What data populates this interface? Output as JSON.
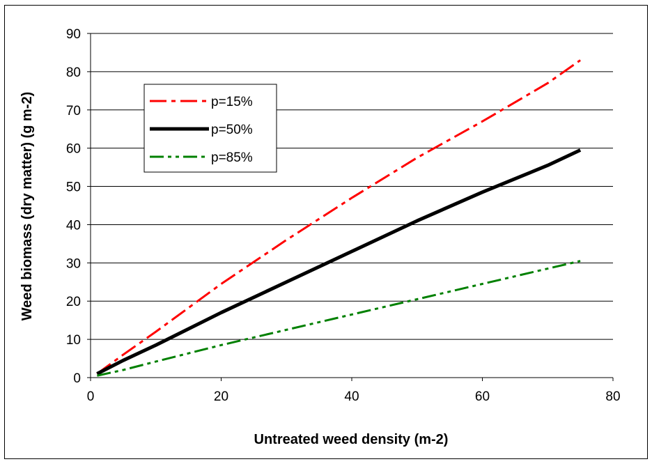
{
  "chart_data": {
    "type": "line",
    "title": "",
    "xlabel": "Untreated weed density (m-2)",
    "ylabel": "Weed biomass (dry matter) (g m-2)",
    "xlim": [
      0,
      80
    ],
    "ylim": [
      0,
      90
    ],
    "xticks": [
      0,
      20,
      40,
      60,
      80
    ],
    "yticks": [
      0,
      10,
      20,
      30,
      40,
      50,
      60,
      70,
      80,
      90
    ],
    "grid": "horizontal",
    "legend_position": "top-left",
    "series": [
      {
        "name": "p=15%",
        "color": "#ff0000",
        "style": "dash-dot",
        "x": [
          1,
          5,
          10,
          20,
          30,
          40,
          50,
          60,
          70,
          75
        ],
        "y": [
          1,
          6,
          12,
          24.5,
          36,
          47,
          57.5,
          67,
          77,
          83
        ]
      },
      {
        "name": "p=50%",
        "color": "#000000",
        "style": "solid",
        "x": [
          1,
          5,
          10,
          20,
          30,
          40,
          50,
          60,
          70,
          75
        ],
        "y": [
          1,
          4.5,
          8.5,
          17,
          25,
          33,
          41,
          48.5,
          55.5,
          59.5
        ]
      },
      {
        "name": "p=85%",
        "color": "#008000",
        "style": "dash-dot-dot",
        "x": [
          1,
          5,
          10,
          20,
          30,
          40,
          50,
          60,
          70,
          75
        ],
        "y": [
          0.5,
          2,
          4.2,
          8.5,
          12.5,
          16.5,
          20.5,
          24.5,
          28.5,
          30.5
        ]
      }
    ]
  }
}
